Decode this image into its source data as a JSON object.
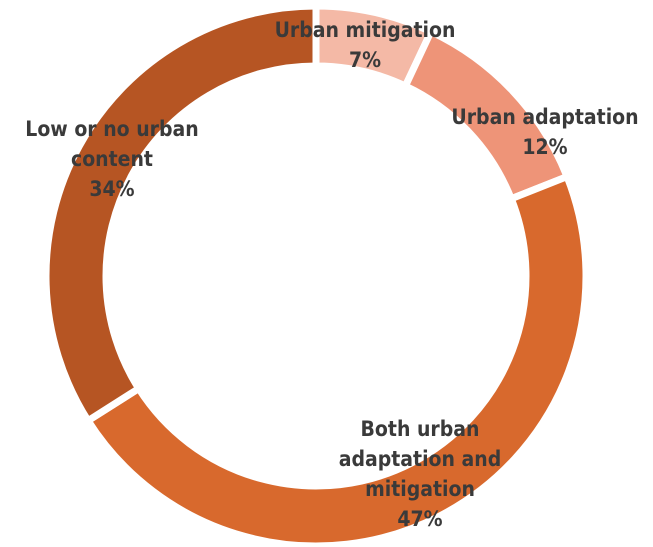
{
  "chart_data": {
    "type": "pie",
    "variant": "donut",
    "title": "",
    "slices": [
      {
        "label_lines": [
          "Urban mitigation"
        ],
        "value_label": "7%",
        "value": 7,
        "color": "#F4B9A6"
      },
      {
        "label_lines": [
          "Urban adaptation"
        ],
        "value_label": "12%",
        "value": 12,
        "color": "#EE9478"
      },
      {
        "label_lines": [
          "Both urban",
          "adaptation and",
          "mitigation"
        ],
        "value_label": "47%",
        "value": 47,
        "color": "#D8692D"
      },
      {
        "label_lines": [
          "Low or no urban",
          "content"
        ],
        "value_label": "34%",
        "value": 34,
        "color": "#B65523"
      }
    ],
    "legend": "none",
    "start": "top, clockwise"
  }
}
